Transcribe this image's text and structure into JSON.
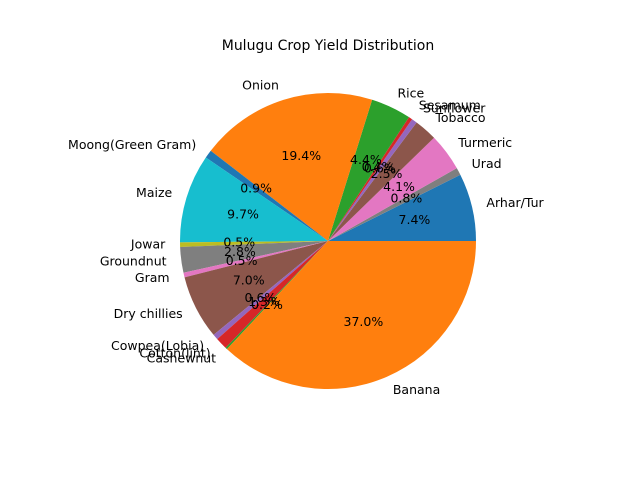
{
  "chart_data": {
    "type": "pie",
    "title": "Mulugu Crop Yield Distribution",
    "start_angle_deg": 0,
    "direction": "counterclockwise",
    "label_format": "percent with one decimal",
    "slices": [
      {
        "label": "Arhar/Tur",
        "value": 7.4,
        "pct_label": "7.4%",
        "color": "#1f77b4"
      },
      {
        "label": "Urad",
        "value": 0.8,
        "pct_label": "0.8%",
        "color": "#7f7f7f"
      },
      {
        "label": "Turmeric",
        "value": 4.1,
        "pct_label": "4.1%",
        "color": "#e377c2"
      },
      {
        "label": "Tobacco",
        "value": 2.5,
        "pct_label": "2.5%",
        "color": "#8c564b"
      },
      {
        "label": "Sunflower",
        "value": 0.6,
        "pct_label": "0.6%",
        "color": "#9467bd"
      },
      {
        "label": "Sesamum",
        "value": 0.4,
        "pct_label": "0.4%",
        "color": "#d62728"
      },
      {
        "label": "Rice",
        "value": 4.4,
        "pct_label": "4.4%",
        "color": "#2ca02c"
      },
      {
        "label": "Onion",
        "value": 19.4,
        "pct_label": "19.4%",
        "color": "#ff7f0e"
      },
      {
        "label": "Moong(Green Gram)",
        "value": 0.9,
        "pct_label": "0.9%",
        "color": "#1f77b4"
      },
      {
        "label": "Maize",
        "value": 9.7,
        "pct_label": "9.7%",
        "color": "#17becf"
      },
      {
        "label": "Jowar",
        "value": 0.5,
        "pct_label": "0.5%",
        "color": "#bcbd22"
      },
      {
        "label": "Groundnut",
        "value": 2.8,
        "pct_label": "2.8%",
        "color": "#7f7f7f"
      },
      {
        "label": "Gram",
        "value": 0.5,
        "pct_label": "0.5%",
        "color": "#e377c2"
      },
      {
        "label": "Dry chillies",
        "value": 7.0,
        "pct_label": "7.0%",
        "color": "#8c564b"
      },
      {
        "label": "Cowpea(Lobia)",
        "value": 0.6,
        "pct_label": "0.6%",
        "color": "#9467bd"
      },
      {
        "label": "Cotton(lint)",
        "value": 1.3,
        "pct_label": "1.3%",
        "color": "#d62728"
      },
      {
        "label": "Cashewnut",
        "value": 0.2,
        "pct_label": "0.2%",
        "color": "#2ca02c"
      },
      {
        "label": "Banana",
        "value": 37.0,
        "pct_label": "37.0%",
        "color": "#ff7f0e"
      }
    ]
  }
}
